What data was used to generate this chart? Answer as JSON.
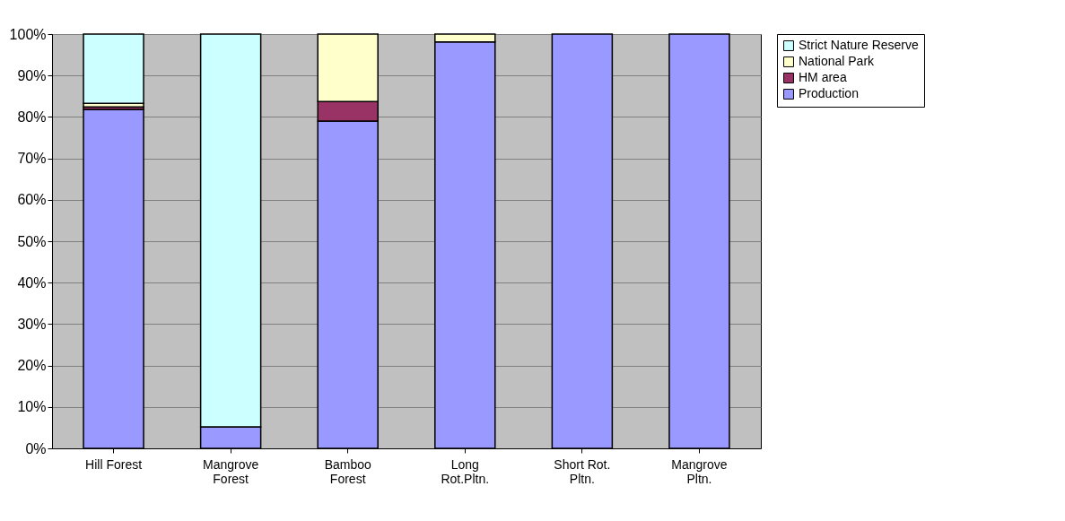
{
  "chart_data": {
    "type": "bar",
    "stacked": true,
    "categories": [
      "Hill Forest",
      "Mangrove Forest",
      "Bamboo Forest",
      "Long Rot.Pltn.",
      "Short Rot. Pltn.",
      "Mangrove Pltn."
    ],
    "series": [
      {
        "name": "Production",
        "color": "#9999ff",
        "values": [
          81.8,
          5.2,
          79,
          98.1,
          100,
          100
        ]
      },
      {
        "name": "HM area",
        "color": "#993366",
        "values": [
          0.6,
          0,
          4.7,
          0,
          0,
          0
        ]
      },
      {
        "name": "National Park",
        "color": "#ffffcc",
        "values": [
          0.9,
          0,
          16.3,
          1.9,
          0,
          0
        ]
      },
      {
        "name": "Strict Nature Reserve",
        "color": "#ccffff",
        "values": [
          16.7,
          94.8,
          0,
          0,
          0,
          0
        ]
      }
    ],
    "ylim": [
      0,
      100
    ],
    "yticks": [
      {
        "value": 0,
        "label": "0%"
      },
      {
        "value": 10,
        "label": "10%"
      },
      {
        "value": 20,
        "label": "20%"
      },
      {
        "value": 30,
        "label": "30%"
      },
      {
        "value": 40,
        "label": "40%"
      },
      {
        "value": 50,
        "label": "50%"
      },
      {
        "value": 60,
        "label": "60%"
      },
      {
        "value": 70,
        "label": "70%"
      },
      {
        "value": 80,
        "label": "80%"
      },
      {
        "value": 90,
        "label": "90%"
      },
      {
        "value": 100,
        "label": "100%"
      }
    ],
    "grid": "y",
    "legend": "right"
  }
}
